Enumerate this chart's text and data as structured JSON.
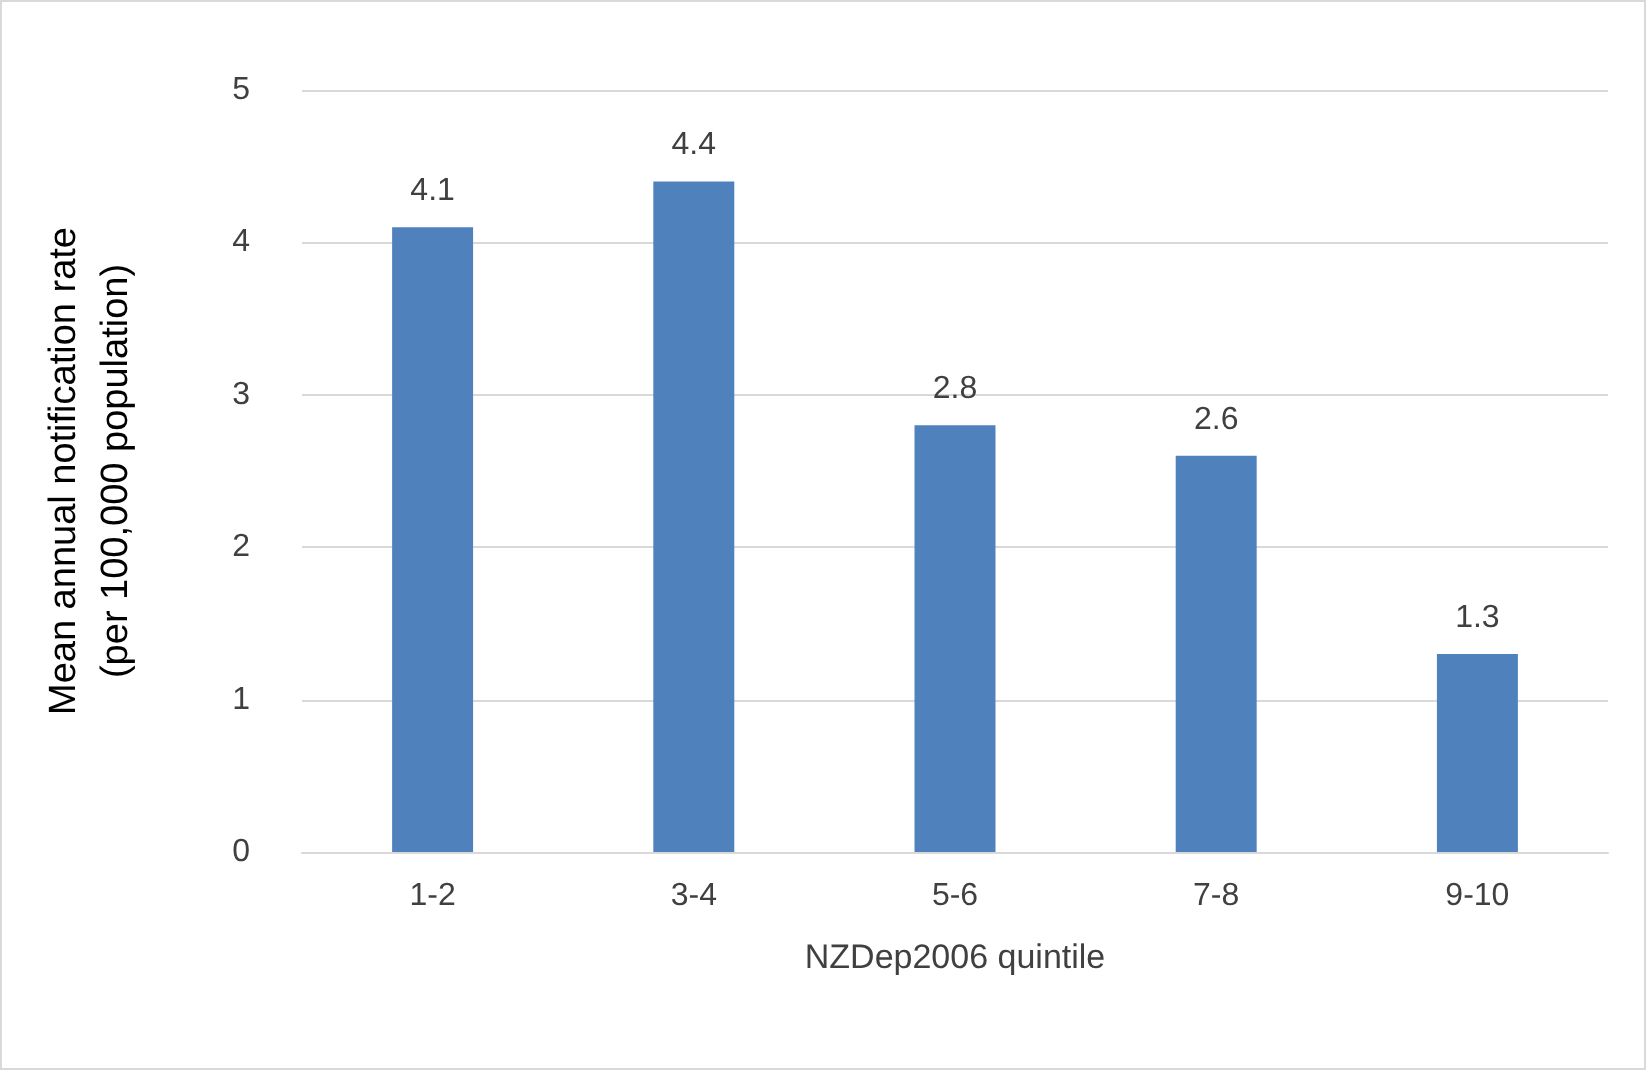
{
  "chart_data": {
    "type": "bar",
    "xlabel": "NZDep2006 quintile",
    "ylabel": "Mean annual notification rate\n(per 100,000 population)",
    "categories": [
      "1-2",
      "3-4",
      "5-6",
      "7-8",
      "9-10"
    ],
    "values": [
      4.1,
      4.4,
      2.8,
      2.6,
      1.3
    ],
    "color": "#4f81bd",
    "ylim": [
      0,
      5
    ],
    "yticks": [
      0,
      1,
      2,
      3,
      4,
      5
    ],
    "grid": "y",
    "data_labels": true
  }
}
